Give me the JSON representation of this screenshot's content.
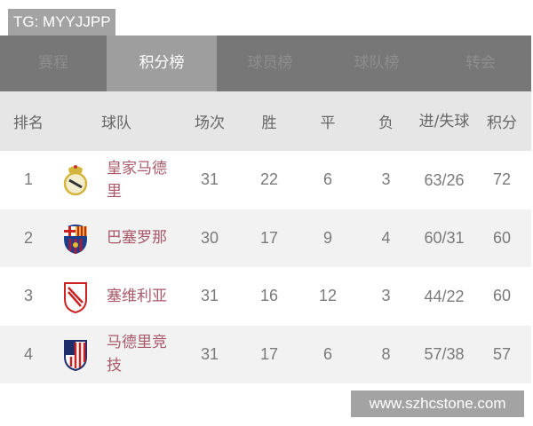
{
  "watermark_top": "TG: MYYJJPP",
  "watermark_bottom": "www.szhcstone.com",
  "tabs": [
    {
      "label": "赛程"
    },
    {
      "label": "积分榜",
      "active": true
    },
    {
      "label": "球员榜"
    },
    {
      "label": "球队榜"
    },
    {
      "label": "转会"
    }
  ],
  "columns": {
    "rank": "排名",
    "team": "球队",
    "games": "场次",
    "win": "胜",
    "draw": "平",
    "loss": "负",
    "goals": "进/失球",
    "points": "积分"
  },
  "rows": [
    {
      "rank": "1",
      "logo": "real-madrid-crest-icon",
      "team": "皇家马德里",
      "games": "31",
      "win": "22",
      "draw": "6",
      "loss": "3",
      "goals": "63/26",
      "points": "72"
    },
    {
      "rank": "2",
      "logo": "barcelona-crest-icon",
      "team": "巴塞罗那",
      "games": "30",
      "win": "17",
      "draw": "9",
      "loss": "4",
      "goals": "60/31",
      "points": "60"
    },
    {
      "rank": "3",
      "logo": "sevilla-crest-icon",
      "team": "塞维利亚",
      "games": "31",
      "win": "16",
      "draw": "12",
      "loss": "3",
      "goals": "44/22",
      "points": "60"
    },
    {
      "rank": "4",
      "logo": "atletico-madrid-crest-icon",
      "team": "马德里竞技",
      "games": "31",
      "win": "17",
      "draw": "6",
      "loss": "8",
      "goals": "57/38",
      "points": "57"
    }
  ]
}
